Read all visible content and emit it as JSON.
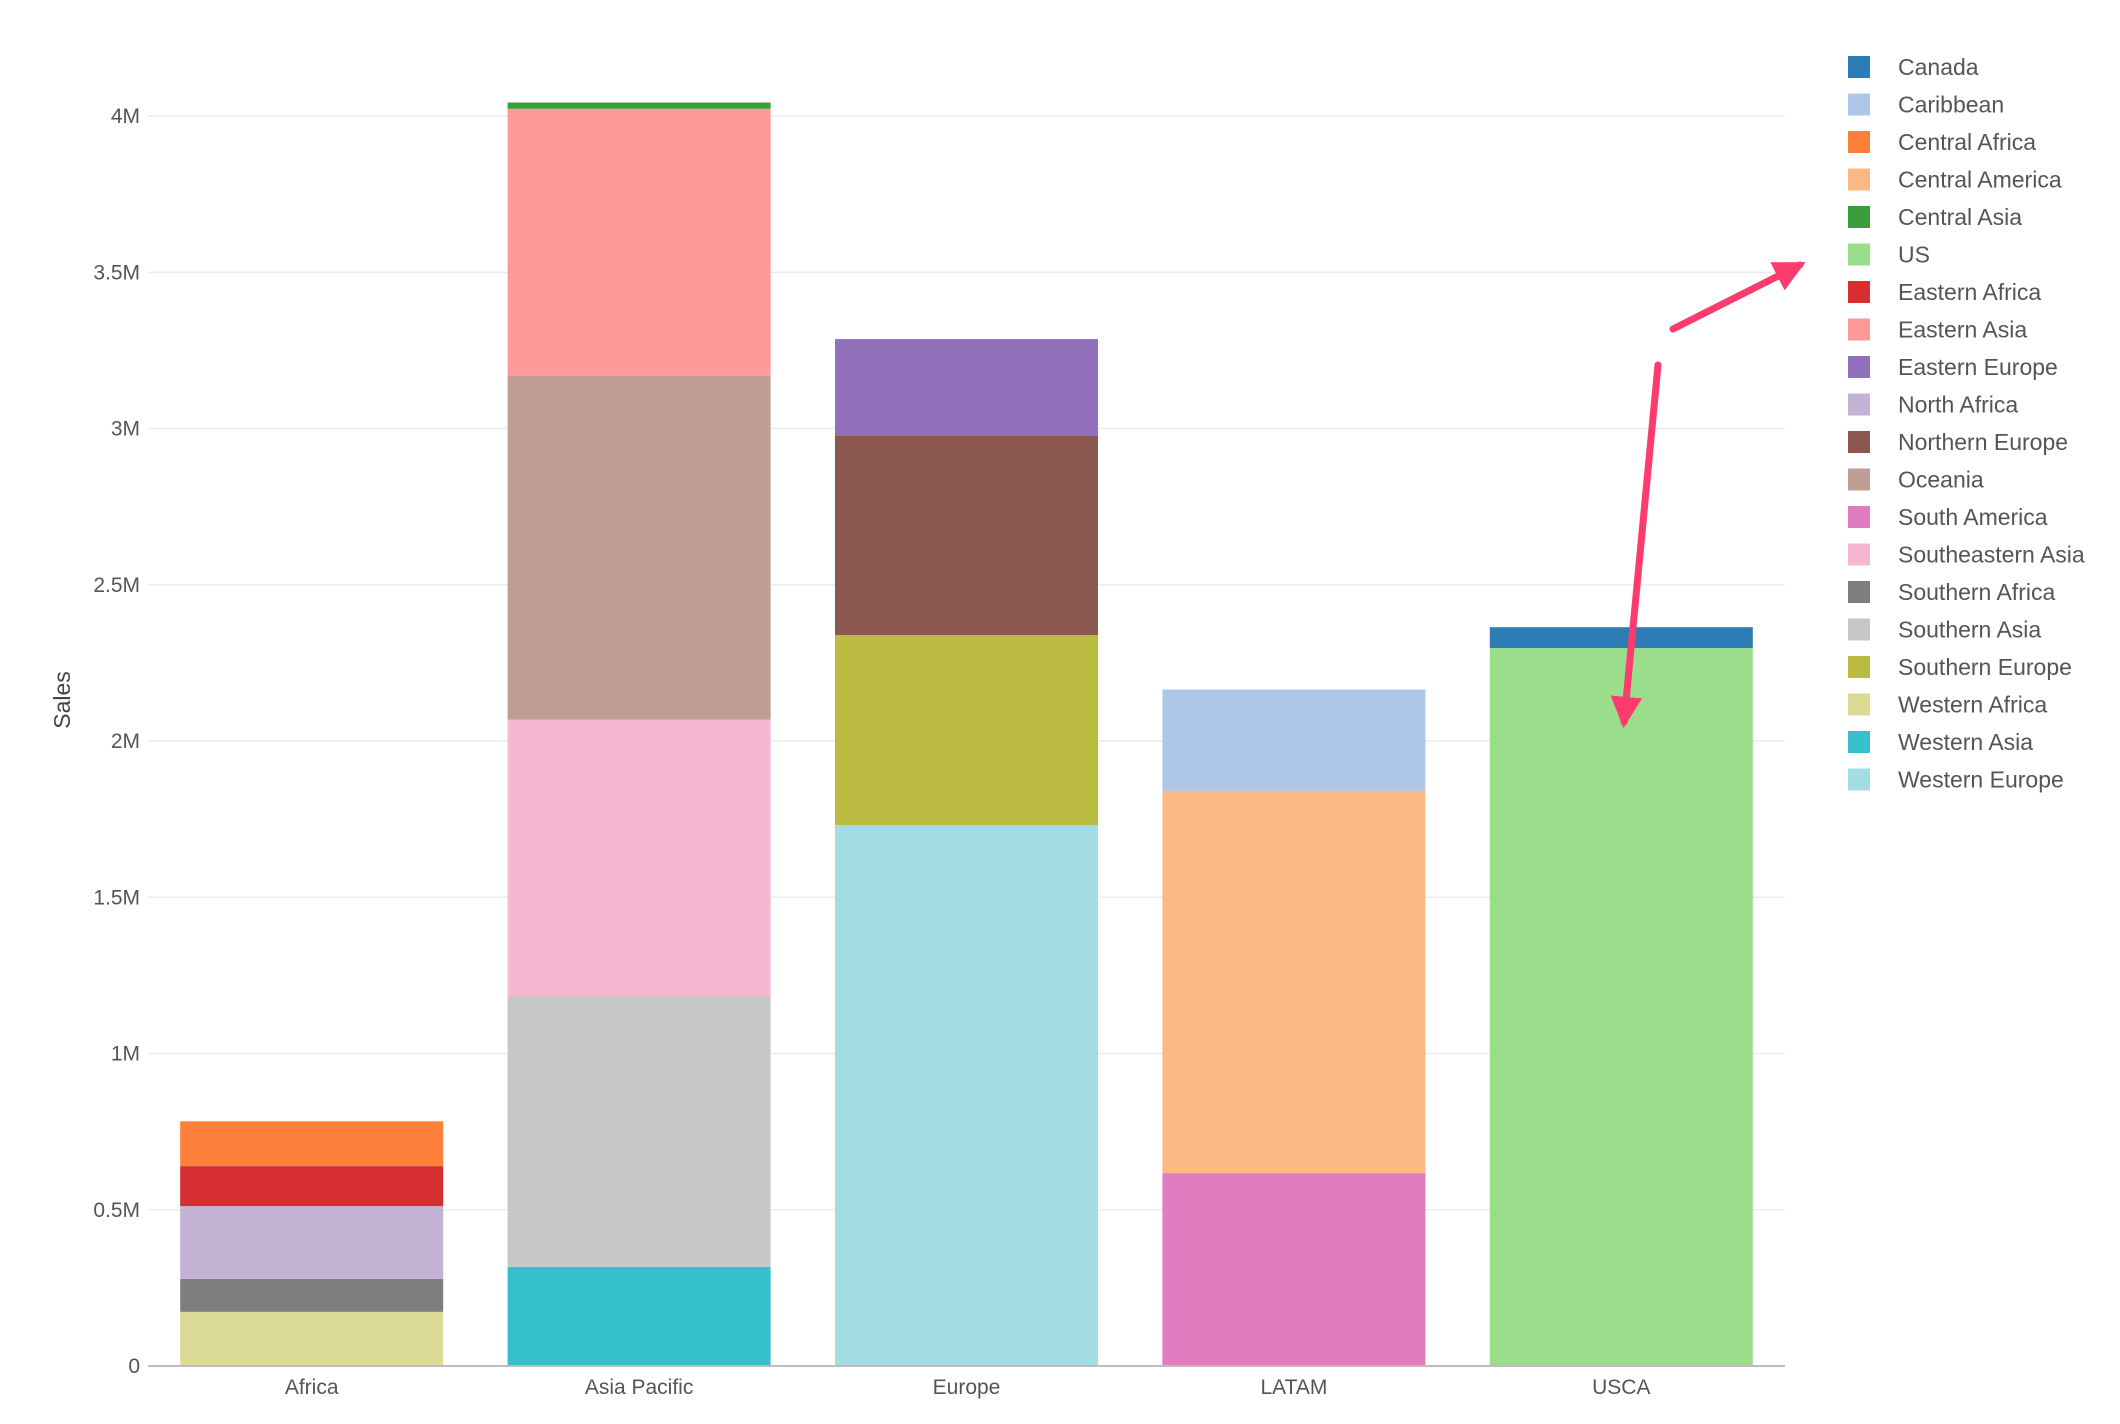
{
  "chart_data": {
    "type": "bar",
    "stacked": true,
    "title": "",
    "xlabel": "",
    "ylabel": "Sales",
    "ylim": [
      0,
      4000000
    ],
    "yticks": [
      0,
      500000,
      1000000,
      1500000,
      2000000,
      2500000,
      3000000,
      3500000,
      4000000
    ],
    "ytick_labels": [
      "0",
      "0.5M",
      "1M",
      "1.5M",
      "2M",
      "2.5M",
      "3M",
      "3.5M",
      "4M"
    ],
    "grid": true,
    "legend_position": "right",
    "categories": [
      "Africa",
      "Asia Pacific",
      "Europe",
      "LATAM",
      "USCA"
    ],
    "series": [
      {
        "name": "Canada",
        "color": "#2e7cb5",
        "values": [
          0,
          0,
          0,
          0,
          66900
        ]
      },
      {
        "name": "Caribbean",
        "color": "#aec7e8",
        "values": [
          0,
          0,
          0,
          324300,
          0
        ]
      },
      {
        "name": "Central Africa",
        "color": "#fd7f39",
        "values": [
          143600,
          0,
          0,
          0,
          0
        ]
      },
      {
        "name": "Central America",
        "color": "#fbba83",
        "values": [
          0,
          0,
          0,
          1223100,
          0
        ]
      },
      {
        "name": "Central Asia",
        "color": "#3a9e3a",
        "values": [
          0,
          19700,
          0,
          0,
          0
        ]
      },
      {
        "name": "US",
        "color": "#9ade8b",
        "values": [
          0,
          0,
          0,
          0,
          2297300
        ]
      },
      {
        "name": "Eastern Africa",
        "color": "#d62e31",
        "values": [
          127900,
          0,
          0,
          0,
          0
        ]
      },
      {
        "name": "Eastern Asia",
        "color": "#fc9a97",
        "values": [
          0,
          855100,
          0,
          0,
          0
        ]
      },
      {
        "name": "Eastern Europe",
        "color": "#9370bb",
        "values": [
          0,
          0,
          310000,
          0,
          0
        ]
      },
      {
        "name": "North Africa",
        "color": "#c4b2d4",
        "values": [
          233200,
          0,
          0,
          0,
          0
        ]
      },
      {
        "name": "Northern Europe",
        "color": "#8b574e",
        "values": [
          0,
          0,
          637000,
          0,
          0
        ]
      },
      {
        "name": "Oceania",
        "color": "#c29d94",
        "values": [
          0,
          1100200,
          0,
          0,
          0
        ]
      },
      {
        "name": "South America",
        "color": "#e07cc0",
        "values": [
          0,
          0,
          0,
          617200,
          0
        ]
      },
      {
        "name": "Southeastern Asia",
        "color": "#f4b8d3",
        "values": [
          0,
          884400,
          0,
          0,
          0
        ]
      },
      {
        "name": "Southern Africa",
        "color": "#7e7e7e",
        "values": [
          105200,
          0,
          0,
          0,
          0
        ]
      },
      {
        "name": "Southern Asia",
        "color": "#c7c7c7",
        "values": [
          0,
          866600,
          0,
          0,
          0
        ]
      },
      {
        "name": "Southern Europe",
        "color": "#bbbb41",
        "values": [
          0,
          0,
          607900,
          0,
          0
        ]
      },
      {
        "name": "Western Africa",
        "color": "#dcdb95",
        "values": [
          173300,
          0,
          0,
          0,
          0
        ]
      },
      {
        "name": "Western Asia",
        "color": "#36bfcd",
        "values": [
          0,
          317100,
          0,
          0,
          0
        ]
      },
      {
        "name": "Western Europe",
        "color": "#a3dde4",
        "values": [
          0,
          0,
          1731200,
          0,
          0
        ]
      }
    ],
    "stack_order": {
      "Africa": [
        "Western Africa",
        "Southern Africa",
        "North Africa",
        "Eastern Africa",
        "Central Africa"
      ],
      "Asia Pacific": [
        "Western Asia",
        "Southern Asia",
        "Southeastern Asia",
        "Oceania",
        "Eastern Asia",
        "Central Asia"
      ],
      "Europe": [
        "Western Europe",
        "Southern Europe",
        "Northern Europe",
        "Eastern Europe"
      ],
      "LATAM": [
        "South America",
        "Central America",
        "Caribbean"
      ],
      "USCA": [
        "US",
        "Canada"
      ]
    },
    "annotations": [
      {
        "type": "arrow",
        "color": "#fc3c6e",
        "description": "pointing to US legend entry"
      },
      {
        "type": "arrow",
        "color": "#fc3c6e",
        "description": "pointing down to US segment of USCA bar"
      }
    ]
  }
}
